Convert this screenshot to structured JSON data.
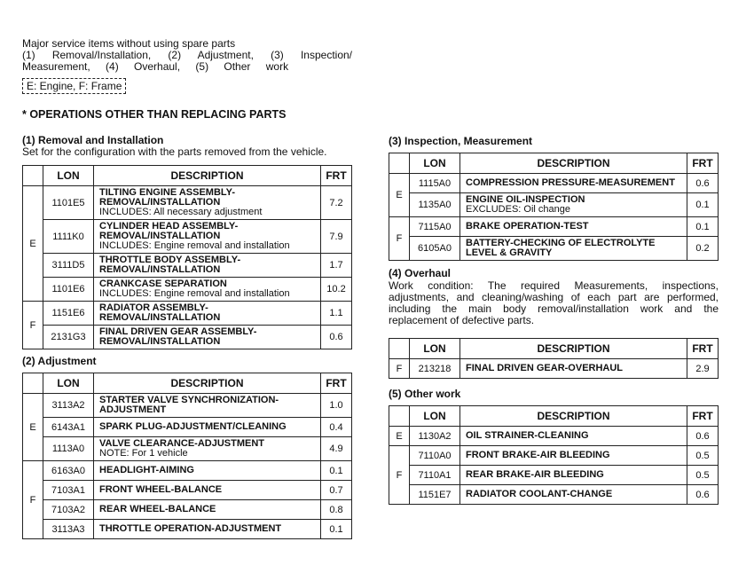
{
  "intro": {
    "line1": "Major service items without using spare parts",
    "line2": "(1) Removal/Installation, (2) Adjustment, (3) Inspection/ Measurement, (4) Overhaul, (5) Other work",
    "legend": "E: Engine, F: Frame"
  },
  "heading": "* OPERATIONS OTHER THAN REPLACING PARTS",
  "columns": {
    "lon": "LON",
    "description": "DESCRIPTION",
    "frt": "FRT"
  },
  "sections": [
    {
      "title": "(1) Removal and Installation",
      "note": "Set for the configuration with the parts removed from the vehicle.",
      "rows": [
        {
          "group": "E",
          "lon": "1101E5",
          "desc": [
            "TILTING ENGINE ASSEMBLY-",
            "REMOVAL/INSTALLATION"
          ],
          "note": "INCLUDES: All necessary adjustment",
          "frt": "7.2"
        },
        {
          "group": "E",
          "lon": "1111K0",
          "desc": [
            "CYLINDER HEAD ASSEMBLY-",
            "REMOVAL/INSTALLATION"
          ],
          "note": "INCLUDES: Engine removal and installation",
          "frt": "7.9"
        },
        {
          "group": "E",
          "lon": "3111D5",
          "desc": [
            "THROTTLE BODY ASSEMBLY-",
            "REMOVAL/INSTALLATION"
          ],
          "frt": "1.7"
        },
        {
          "group": "E",
          "lon": "1101E6",
          "desc": [
            "CRANKCASE SEPARATION"
          ],
          "note": "INCLUDES: Engine removal and installation",
          "frt": "10.2"
        },
        {
          "group": "F",
          "lon": "1151E6",
          "desc": [
            "RADIATOR ASSEMBLY-",
            "REMOVAL/INSTALLATION"
          ],
          "frt": "1.1"
        },
        {
          "group": "F",
          "lon": "2131G3",
          "desc": [
            "FINAL DRIVEN GEAR ASSEMBLY-",
            "REMOVAL/INSTALLATION"
          ],
          "frt": "0.6"
        }
      ]
    },
    {
      "title": "(2) Adjustment",
      "rows": [
        {
          "group": "E",
          "lon": "3113A2",
          "desc": [
            "STARTER VALVE SYNCHRONIZATION-",
            "ADJUSTMENT"
          ],
          "frt": "1.0"
        },
        {
          "group": "E",
          "lon": "6143A1",
          "desc": [
            "SPARK PLUG-ADJUSTMENT/CLEANING"
          ],
          "frt": "0.4"
        },
        {
          "group": "E",
          "lon": "1113A0",
          "desc": [
            "VALVE CLEARANCE-ADJUSTMENT"
          ],
          "note": "NOTE: For 1 vehicle",
          "frt": "4.9"
        },
        {
          "group": "F",
          "lon": "6163A0",
          "desc": [
            "HEADLIGHT-AIMING"
          ],
          "frt": "0.1"
        },
        {
          "group": "F",
          "lon": "7103A1",
          "desc": [
            "FRONT WHEEL-BALANCE"
          ],
          "frt": "0.7"
        },
        {
          "group": "F",
          "lon": "7103A2",
          "desc": [
            "REAR WHEEL-BALANCE"
          ],
          "frt": "0.8"
        },
        {
          "group": "F",
          "lon": "3113A3",
          "desc": [
            "THROTTLE OPERATION-ADJUSTMENT"
          ],
          "frt": "0.1"
        }
      ]
    },
    {
      "title": "(3) Inspection, Measurement",
      "rows": [
        {
          "group": "E",
          "lon": "1115A0",
          "desc": [
            "COMPRESSION PRESSURE-MEASUREMENT"
          ],
          "frt": "0.6"
        },
        {
          "group": "E",
          "lon": "1135A0",
          "desc": [
            "ENGINE OIL-INSPECTION"
          ],
          "note": "EXCLUDES: Oil change",
          "frt": "0.1"
        },
        {
          "group": "F",
          "lon": "7115A0",
          "desc": [
            "BRAKE OPERATION-TEST"
          ],
          "frt": "0.1"
        },
        {
          "group": "F",
          "lon": "6105A0",
          "desc": [
            "BATTERY-CHECKING OF ELECTROLYTE",
            "LEVEL & GRAVITY"
          ],
          "frt": "0.2"
        }
      ]
    },
    {
      "title": "(4) Overhaul",
      "note": "Work condition: The required Measurements, inspections, adjustments, and cleaning/washing of each part are performed, including the main body removal/installation work and the replacement of defective parts.",
      "rows": [
        {
          "group": "F",
          "lon": "213218",
          "desc": [
            "FINAL DRIVEN GEAR-OVERHAUL"
          ],
          "frt": "2.9"
        }
      ]
    },
    {
      "title": "(5) Other work",
      "rows": [
        {
          "group": "E",
          "lon": "1130A2",
          "desc": [
            "OIL STRAINER-CLEANING"
          ],
          "frt": "0.6"
        },
        {
          "group": "F",
          "lon": "7110A0",
          "desc": [
            "FRONT BRAKE-AIR BLEEDING"
          ],
          "frt": "0.5"
        },
        {
          "group": "F",
          "lon": "7110A1",
          "desc": [
            "REAR BRAKE-AIR BLEEDING"
          ],
          "frt": "0.5"
        },
        {
          "group": "F",
          "lon": "1151E7",
          "desc": [
            "RADIATOR COOLANT-CHANGE"
          ],
          "frt": "0.6"
        }
      ]
    }
  ]
}
